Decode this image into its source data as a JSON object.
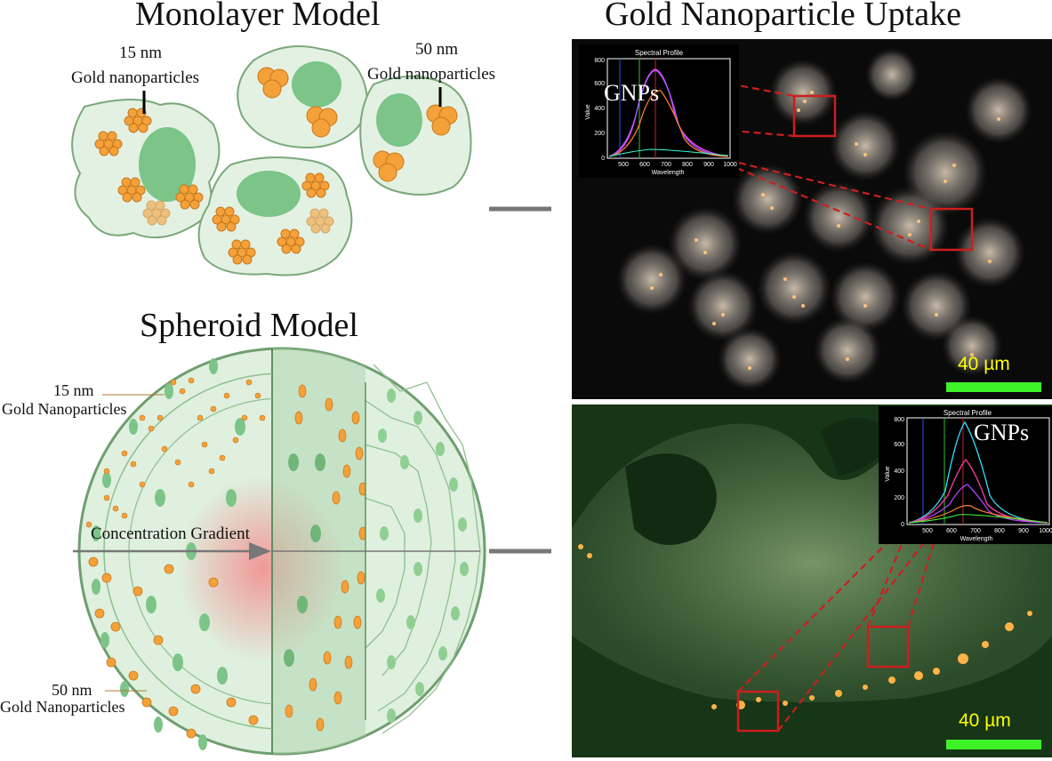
{
  "titles": {
    "monolayer": "Monolayer Model",
    "uptake": "Gold Nanoparticle Uptake",
    "spheroid": "Spheroid Model"
  },
  "monolayer_labels": {
    "small_size": "15 nm",
    "small_name": "Gold nanoparticles",
    "large_size": "50 nm",
    "large_name": "Gold nanoparticles"
  },
  "spheroid_labels": {
    "small_size": "15 nm",
    "small_name": "Gold Nanoparticles",
    "gradient": "Concentration Gradient",
    "large_size": "50 nm",
    "large_name": "Gold Nanoparticles"
  },
  "micrographs": {
    "top": {
      "scale": "40 µm",
      "inset_label": "GNPs"
    },
    "bottom": {
      "scale": "40 µm",
      "inset_label": "GNPs"
    }
  },
  "spectral_inset": {
    "title": "Spectral Profile",
    "ylabel": "Value",
    "xlabel": "Wavelength",
    "yticks": [
      "0",
      "200",
      "400",
      "600",
      "800"
    ],
    "xticks": [
      "500",
      "600",
      "700",
      "800",
      "900",
      "1000"
    ]
  },
  "colors": {
    "cell_fill": "#e3f1e3",
    "nucleus": "#7cc487",
    "gold_particle": "#f5a13a",
    "zoom_box": "#cc1e1e",
    "arrow": "#777777",
    "scale_text": "#ffff00",
    "scale_bar": "#3df227"
  }
}
